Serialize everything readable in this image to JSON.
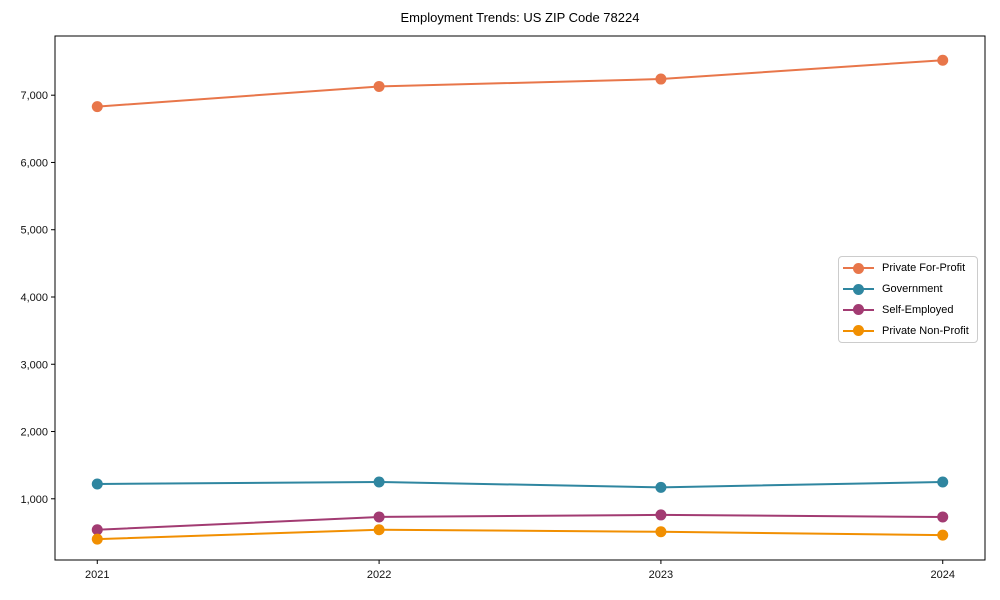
{
  "chart_data": {
    "type": "line",
    "title": "Employment Trends: US ZIP Code 78224",
    "x": [
      2021,
      2022,
      2023,
      2024
    ],
    "x_tick_labels": [
      "2021",
      "2022",
      "2023",
      "2024"
    ],
    "y_ticks": [
      1000,
      2000,
      3000,
      4000,
      5000,
      6000,
      7000
    ],
    "y_tick_labels": [
      "1,000",
      "2,000",
      "3,000",
      "4,000",
      "5,000",
      "6,000",
      "7,000"
    ],
    "xlabel": "",
    "ylabel": "",
    "xlim": [
      2020.85,
      2024.15
    ],
    "ylim": [
      90,
      7880
    ],
    "grid": false,
    "legend_position": "center-right",
    "axis_color": "#000000",
    "legend_border_color": "#cccccc",
    "series": [
      {
        "name": "Private For-Profit",
        "color": "#E8764A",
        "marker": "circle",
        "values": [
          6830,
          7130,
          7240,
          7520
        ]
      },
      {
        "name": "Government",
        "color": "#2F86A0",
        "marker": "circle",
        "values": [
          1220,
          1250,
          1170,
          1250
        ]
      },
      {
        "name": "Self-Employed",
        "color": "#A23B72",
        "marker": "circle",
        "values": [
          540,
          730,
          760,
          730
        ]
      },
      {
        "name": "Private Non-Profit",
        "color": "#F18F01",
        "marker": "circle",
        "values": [
          400,
          540,
          510,
          460
        ]
      }
    ]
  }
}
